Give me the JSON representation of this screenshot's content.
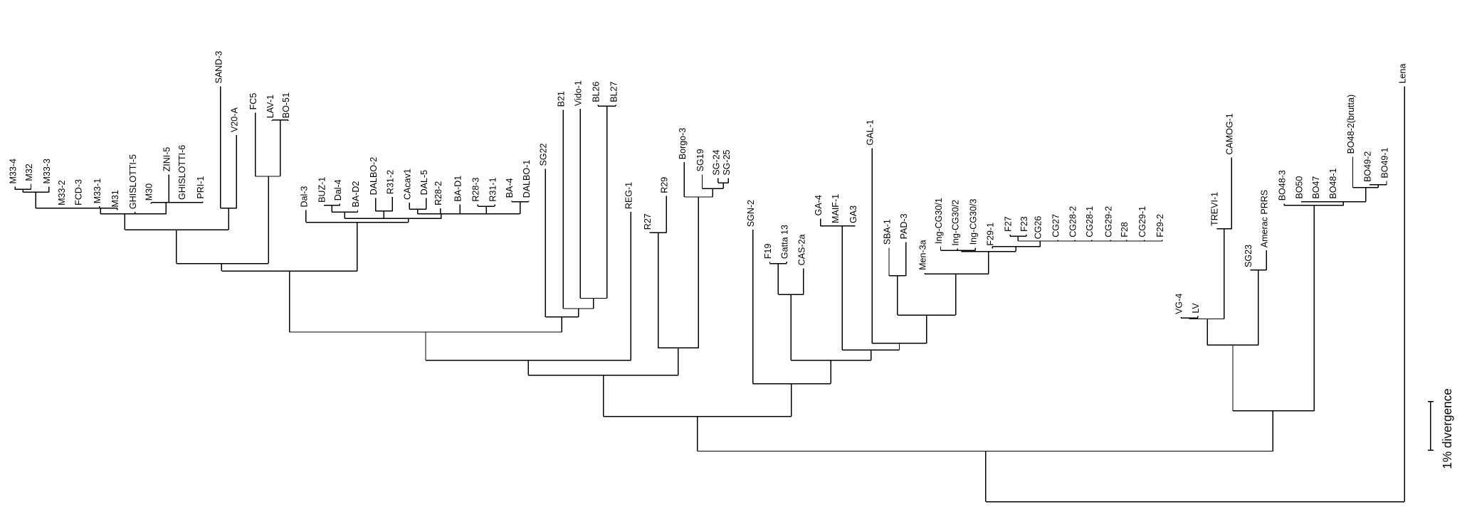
{
  "tree": {
    "leaves": [
      "M33-4",
      "M32",
      "M33-3",
      "M33-2",
      "FCD-3",
      "M33-1",
      "M31",
      "GHISLOTTI-5",
      "M30",
      "ZINI-5",
      "GHISLOTTI-6",
      "PRI-1",
      "SAND-3",
      "V20-A",
      "FC5",
      "LAV-1",
      "BO-51",
      "Dal-3",
      "BUZ-1",
      "Dal-4",
      "BA-D2",
      "DALBO-2",
      "R31-2",
      "CAcav1",
      "DAL-5",
      "R28-2",
      "BA-D1",
      "R28-3",
      "R31-1",
      "BA-4",
      "DALBO-1",
      "SG22",
      "B21",
      "Vido-1",
      "BL26",
      "BL27",
      "REG-1",
      "R27",
      "R29",
      "Borgo-3",
      "SG19",
      "SG-24",
      "SG-25",
      "SGN-2",
      "F19",
      "Gatta 13",
      "CAS-2a",
      "GA-4",
      "MAIF-1",
      "GA3",
      "GAL-1",
      "SBA-1",
      "PAD-3",
      "Men-3a",
      "Ing-CG30/1",
      "Ing-CG30/2",
      "Ing-CG30/3",
      "F29-1",
      "F27",
      "F23",
      "CG26",
      "CG27",
      "CG28-2",
      "CG28-1",
      "CG29-2",
      "F28",
      "CG29-1",
      "F29-2",
      "VG-4",
      "LV",
      "TREVI-1",
      "CAMOG-1",
      "SG23",
      "Amerac PRRS",
      "BO48-3",
      "BO50",
      "BO47",
      "BO48-1",
      "BO48-2(brutta)",
      "BO49-2",
      "BO49-1",
      "Lena"
    ],
    "scale_bar_label": "1% divergence",
    "line_color": "#000000",
    "background": "#ffffff"
  }
}
